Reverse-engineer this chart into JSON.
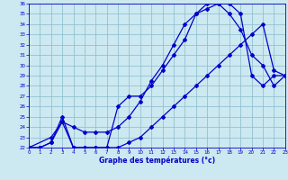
{
  "xlabel": "Graphe des températures (°c)",
  "bg_color": "#cce8f0",
  "line_color": "#0000cc",
  "grid_color": "#88bbcc",
  "x_ticks": [
    0,
    1,
    2,
    3,
    4,
    5,
    6,
    7,
    8,
    9,
    10,
    11,
    12,
    13,
    14,
    15,
    16,
    17,
    18,
    19,
    20,
    21,
    22,
    23
  ],
  "y_ticks": [
    22,
    23,
    24,
    25,
    26,
    27,
    28,
    29,
    30,
    31,
    32,
    33,
    34,
    35,
    36
  ],
  "xlim": [
    0,
    23
  ],
  "ylim": [
    22,
    36
  ],
  "line1_x": [
    0,
    1,
    2,
    3,
    4,
    5,
    6,
    7,
    8,
    9,
    10,
    11,
    12,
    13,
    14,
    15,
    16,
    17,
    18,
    19,
    20,
    21,
    22,
    23
  ],
  "line1_y": [
    22,
    22,
    22.5,
    25,
    22,
    22,
    22,
    22,
    26,
    27,
    27,
    28,
    29.5,
    31,
    32.5,
    35,
    35.5,
    36,
    36,
    35,
    29,
    28,
    29,
    29
  ],
  "line2_x": [
    0,
    1,
    2,
    3,
    4,
    5,
    6,
    7,
    8,
    9,
    10,
    11,
    12,
    13,
    14,
    15,
    16,
    17,
    18,
    19,
    20,
    21,
    22,
    23
  ],
  "line2_y": [
    22,
    22,
    22.5,
    24.5,
    24,
    23.5,
    23.5,
    23.5,
    24,
    25,
    26.5,
    28.5,
    30,
    32,
    34,
    35,
    36,
    36,
    35,
    33.5,
    31,
    30,
    28,
    29
  ],
  "line3_x": [
    0,
    2,
    3,
    4,
    5,
    6,
    7,
    8,
    9,
    10,
    11,
    12,
    13,
    14,
    15,
    16,
    17,
    18,
    19,
    20,
    21,
    22,
    23
  ],
  "line3_y": [
    22,
    23,
    24.5,
    22,
    22,
    22,
    22,
    22,
    22.5,
    23,
    24,
    25,
    26,
    27,
    28,
    29,
    30,
    31,
    32,
    33,
    34,
    29.5,
    29
  ]
}
